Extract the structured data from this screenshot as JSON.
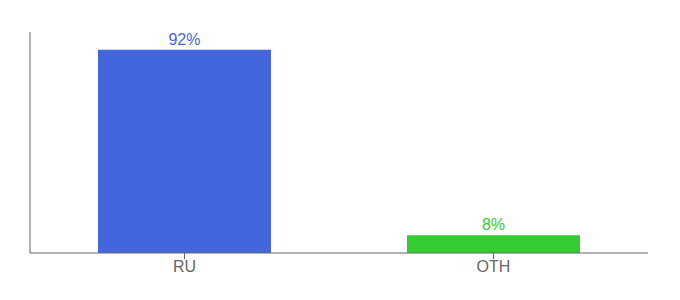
{
  "chart_data": {
    "type": "bar",
    "categories": [
      "RU",
      "OTH"
    ],
    "values": [
      92,
      8
    ],
    "value_labels": [
      "92%",
      "8%"
    ],
    "colors": [
      "#4466dd",
      "#33cc33"
    ],
    "data_labels": true,
    "ylim": [
      0,
      100
    ],
    "yticks": [],
    "tick_labels": "x",
    "grid": false
  }
}
